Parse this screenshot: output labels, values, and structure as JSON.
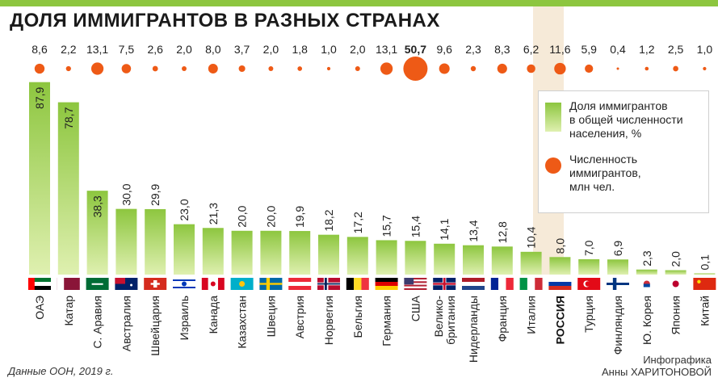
{
  "title": "ДОЛЯ ИММИГРАНТОВ В РАЗНЫХ СТРАНАХ",
  "source": "Данные ООН, 2019 г.",
  "credit": "Инфографика\nАнны ХАРИТОНОВОЙ",
  "highlight_country": "РОССИЯ",
  "colors": {
    "bar_top": "#8dc63f",
    "bar_bottom": "#dff0b0",
    "dot": "#ee5a16",
    "highlight_bg": "#f6ead8",
    "top_bar": "#8dc63f"
  },
  "legend": {
    "share_label": "Доля иммигрантов\nв общей численности\nнаселения, %",
    "count_label": "Численность\nиммигрантов,\nмлн чел."
  },
  "chart_data": {
    "type": "bar",
    "categories": [
      "ОАЭ",
      "Катар",
      "С. Аравия",
      "Австралия",
      "Швейцария",
      "Израиль",
      "Канада",
      "Казахстан",
      "Швеция",
      "Австрия",
      "Норвегия",
      "Бельгия",
      "Германия",
      "США",
      "Велико-\nбритания",
      "Нидерланды",
      "Франция",
      "Италия",
      "РОССИЯ",
      "Турция",
      "Финляндия",
      "Ю. Корея",
      "Япония",
      "Китай"
    ],
    "series": [
      {
        "name": "Доля иммигрантов в общей численности населения, %",
        "values": [
          87.9,
          78.7,
          38.3,
          30.0,
          29.9,
          23.0,
          21.3,
          20.0,
          20.0,
          19.9,
          18.2,
          17.2,
          15.7,
          15.4,
          14.1,
          13.4,
          12.8,
          10.4,
          8.0,
          7.0,
          6.9,
          2.3,
          2.0,
          0.1
        ],
        "labels": [
          "87,9",
          "78,7",
          "38,3",
          "30,0",
          "29,9",
          "23,0",
          "21,3",
          "20,0",
          "20,0",
          "19,9",
          "18,2",
          "17,2",
          "15,7",
          "15,4",
          "14,1",
          "13,4",
          "12,8",
          "10,4",
          "8,0",
          "7,0",
          "6,9",
          "2,3",
          "2,0",
          "0,1"
        ]
      },
      {
        "name": "Численность иммигрантов, млн чел.",
        "values": [
          8.6,
          2.2,
          13.1,
          7.5,
          2.6,
          2.0,
          8.0,
          3.7,
          2.0,
          1.8,
          1.0,
          2.0,
          13.1,
          50.7,
          9.6,
          2.3,
          8.3,
          6.2,
          11.6,
          5.9,
          0.4,
          1.2,
          2.5,
          1.0
        ],
        "labels": [
          "8,6",
          "2,2",
          "13,1",
          "7,5",
          "2,6",
          "2,0",
          "8,0",
          "3,7",
          "2,0",
          "1,8",
          "1,0",
          "2,0",
          "13,1",
          "50,7",
          "9,6",
          "2,3",
          "8,3",
          "6,2",
          "11,6",
          "5,9",
          "0,4",
          "1,2",
          "2,5",
          "1,0"
        ]
      }
    ],
    "flags": [
      "uae",
      "qatar",
      "saudi-arabia",
      "australia",
      "switzerland",
      "israel",
      "canada",
      "kazakhstan",
      "sweden",
      "austria",
      "norway",
      "belgium",
      "germany",
      "usa",
      "uk",
      "netherlands",
      "france",
      "italy",
      "russia",
      "turkey",
      "finland",
      "south-korea",
      "japan",
      "china"
    ],
    "ylim": [
      0,
      90
    ],
    "grid": false,
    "legend_position": "right"
  }
}
